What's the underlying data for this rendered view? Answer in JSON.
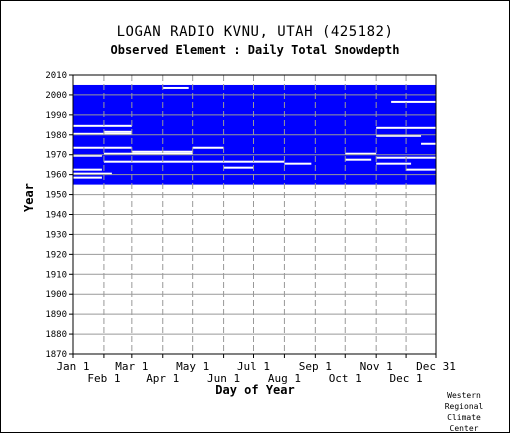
{
  "header": {
    "title": "LOGAN RADIO KVNU, UTAH   (425182)",
    "subtitle": "Observed Element : Daily Total Snowdepth"
  },
  "credit": {
    "line1": "Western",
    "line2": "Regional",
    "line3": "Climate",
    "line4": "Center"
  },
  "colors": {
    "data": "#0000ff",
    "grid": "#999999",
    "frame": "#000000"
  },
  "chart_data": {
    "type": "heatmap",
    "title": "LOGAN RADIO KVNU, UTAH   (425182)",
    "subtitle": "Observed Element : Daily Total Snowdepth",
    "xlabel": "Day of Year",
    "ylabel": "Year",
    "xlim": [
      1,
      365
    ],
    "ylim": [
      1870,
      2010
    ],
    "x_ticks_top_row": [
      "Jan 1",
      "Mar 1",
      "May 1",
      "Jul 1",
      "Sep 1",
      "Nov 1",
      "Dec 31"
    ],
    "x_ticks_top_row_days": [
      1,
      60,
      121,
      182,
      244,
      305,
      365
    ],
    "x_ticks_bottom_row": [
      "Feb 1",
      "Apr 1",
      "Jun 1",
      "Aug 1",
      "Oct 1",
      "Dec 1"
    ],
    "x_ticks_bottom_row_days": [
      32,
      91,
      152,
      213,
      274,
      335
    ],
    "y_ticks": [
      "1870",
      "1880",
      "1890",
      "1900",
      "1910",
      "1920",
      "1930",
      "1940",
      "1950",
      "1960",
      "1970",
      "1980",
      "1990",
      "2000",
      "2010"
    ],
    "data_years": [
      1955,
      2005
    ],
    "grid": true,
    "gaps": [
      {
        "year_from": 1984,
        "year_to": 1985,
        "day_from": 1,
        "day_to": 60
      },
      {
        "year_from": 1981,
        "year_to": 1982,
        "day_from": 32,
        "day_to": 60
      },
      {
        "year_from": 1980,
        "year_to": 1981,
        "day_from": 1,
        "day_to": 60
      },
      {
        "year_from": 1973,
        "year_to": 1974,
        "day_from": 1,
        "day_to": 60
      },
      {
        "year_from": 1970,
        "year_to": 1971,
        "day_from": 32,
        "day_to": 121
      },
      {
        "year_from": 1969,
        "year_to": 1970,
        "day_from": 1,
        "day_to": 30
      },
      {
        "year_from": 1966,
        "year_to": 1967,
        "day_from": 32,
        "day_to": 152
      },
      {
        "year_from": 1966,
        "year_to": 1967,
        "day_from": 152,
        "day_to": 213
      },
      {
        "year_from": 1965,
        "year_to": 1966,
        "day_from": 213,
        "day_to": 240
      },
      {
        "year_from": 1971,
        "year_to": 1972,
        "day_from": 60,
        "day_to": 121
      },
      {
        "year_from": 1973,
        "year_to": 1974,
        "day_from": 121,
        "day_to": 152
      },
      {
        "year_from": 1963,
        "year_to": 1964,
        "day_from": 152,
        "day_to": 182
      },
      {
        "year_from": 1962,
        "year_to": 1963,
        "day_from": 1,
        "day_to": 30
      },
      {
        "year_from": 1960,
        "year_to": 1961,
        "day_from": 1,
        "day_to": 40
      },
      {
        "year_from": 1958,
        "year_to": 1959,
        "day_from": 1,
        "day_to": 30
      },
      {
        "year_from": 2003,
        "year_to": 2004,
        "day_from": 91,
        "day_to": 117
      },
      {
        "year_from": 1996,
        "year_to": 1997,
        "day_from": 320,
        "day_to": 365
      },
      {
        "year_from": 1983,
        "year_to": 1984,
        "day_from": 305,
        "day_to": 365
      },
      {
        "year_from": 1979,
        "year_to": 1980,
        "day_from": 305,
        "day_to": 350
      },
      {
        "year_from": 1970,
        "year_to": 1971,
        "day_from": 274,
        "day_to": 305
      },
      {
        "year_from": 1968,
        "year_to": 1969,
        "day_from": 305,
        "day_to": 365
      },
      {
        "year_from": 1965,
        "year_to": 1966,
        "day_from": 305,
        "day_to": 340
      },
      {
        "year_from": 1962,
        "year_to": 1963,
        "day_from": 335,
        "day_to": 365
      },
      {
        "year_from": 1975,
        "year_to": 1976,
        "day_from": 350,
        "day_to": 365
      },
      {
        "year_from": 1967,
        "year_to": 1968,
        "day_from": 274,
        "day_to": 300
      }
    ]
  }
}
